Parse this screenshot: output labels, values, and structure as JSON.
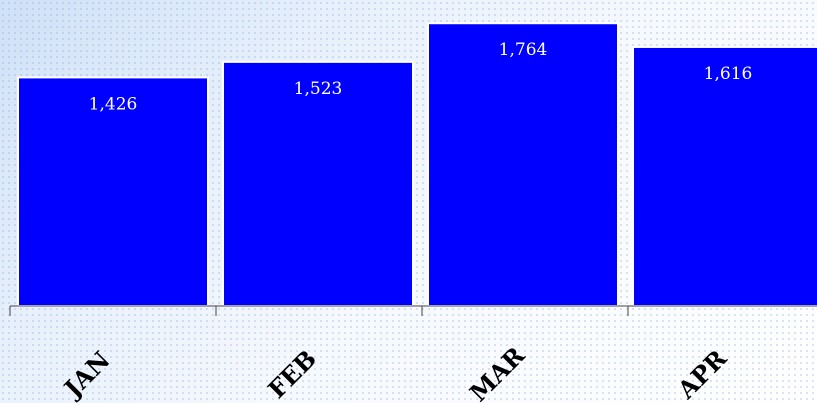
{
  "chart_data": {
    "type": "bar",
    "categories": [
      "JAN",
      "FEB",
      "MAR",
      "APR"
    ],
    "values": [
      1426,
      1523,
      1764,
      1616
    ],
    "value_labels": [
      "1,426",
      "1,523",
      "1,764",
      "1,616"
    ],
    "title": "",
    "xlabel": "",
    "ylabel": "",
    "ylim": [
      0,
      1834
    ],
    "grid": false,
    "legend": "none",
    "colors": {
      "bar": "#0000ff",
      "bar_border": "#ffffff",
      "data_label": "#ffffff",
      "category_label": "#000000"
    }
  }
}
